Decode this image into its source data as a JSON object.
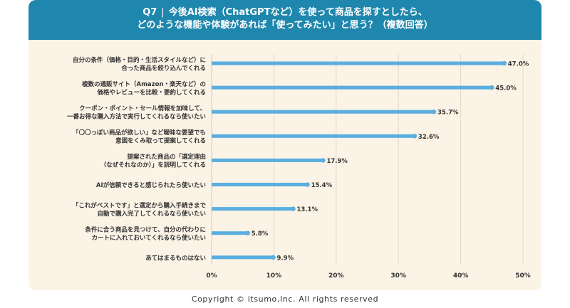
{
  "header": {
    "q_number": "Q7",
    "q_separator": "|",
    "line1": "今後AI検索（ChatGPTなど）を使って商品を探すとしたら、",
    "line2": "どのような機能や体験があれば「使ってみたい」と思う？（複数回答）"
  },
  "colors": {
    "header_bg": "#1f87ad",
    "card_bg": "#fbf3e6",
    "bar": "#5aaee0",
    "grid": "#e5d8c3"
  },
  "chart_data": {
    "type": "bar",
    "orientation": "horizontal",
    "categories": [
      [
        "自分の条件（価格・目的・生活スタイルなど）に",
        "合った商品を絞り込んでくれる"
      ],
      [
        "複数の通販サイト（Amazon・楽天など）の",
        "価格やレビューを比較・要約してくれる"
      ],
      [
        "クーポン・ポイント・セール情報を加味して、",
        "一番お得な購入方法で実行してくれるなら使いたい"
      ],
      [
        "「〇〇っぽい商品が欲しい」など曖昧な要望でも",
        "意図をくみ取って提案してくれる"
      ],
      [
        "提案された商品の「選定理由",
        "（なぜそれなのか）」を説明してくれる"
      ],
      [
        "AIが信頼できると感じられたら使いたい"
      ],
      [
        "「これがベストです」と選定から購入手続きまで",
        "自動で購入完了してくれるなら使いたい"
      ],
      [
        "条件に合う商品を見つけて、自分の代わりに",
        "カートに入れておいてくれるなら使いたい"
      ],
      [
        "あてはまるものはない"
      ]
    ],
    "values": [
      47.0,
      45.0,
      35.7,
      32.6,
      17.9,
      15.4,
      13.1,
      5.8,
      9.9
    ],
    "value_labels": [
      "47.0%",
      "45.0%",
      "35.7%",
      "32.6%",
      "17.9%",
      "15.4%",
      "13.1%",
      "5.8%",
      "9.9%"
    ],
    "x_ticks": [
      0,
      10,
      20,
      30,
      40,
      50
    ],
    "x_tick_labels": [
      "0%",
      "10%",
      "20%",
      "30%",
      "40%",
      "50%"
    ],
    "xlim": [
      0,
      50
    ],
    "grid": true
  },
  "footer": {
    "copyright": "Copyright © itsumo,Inc. All rights reserved"
  }
}
